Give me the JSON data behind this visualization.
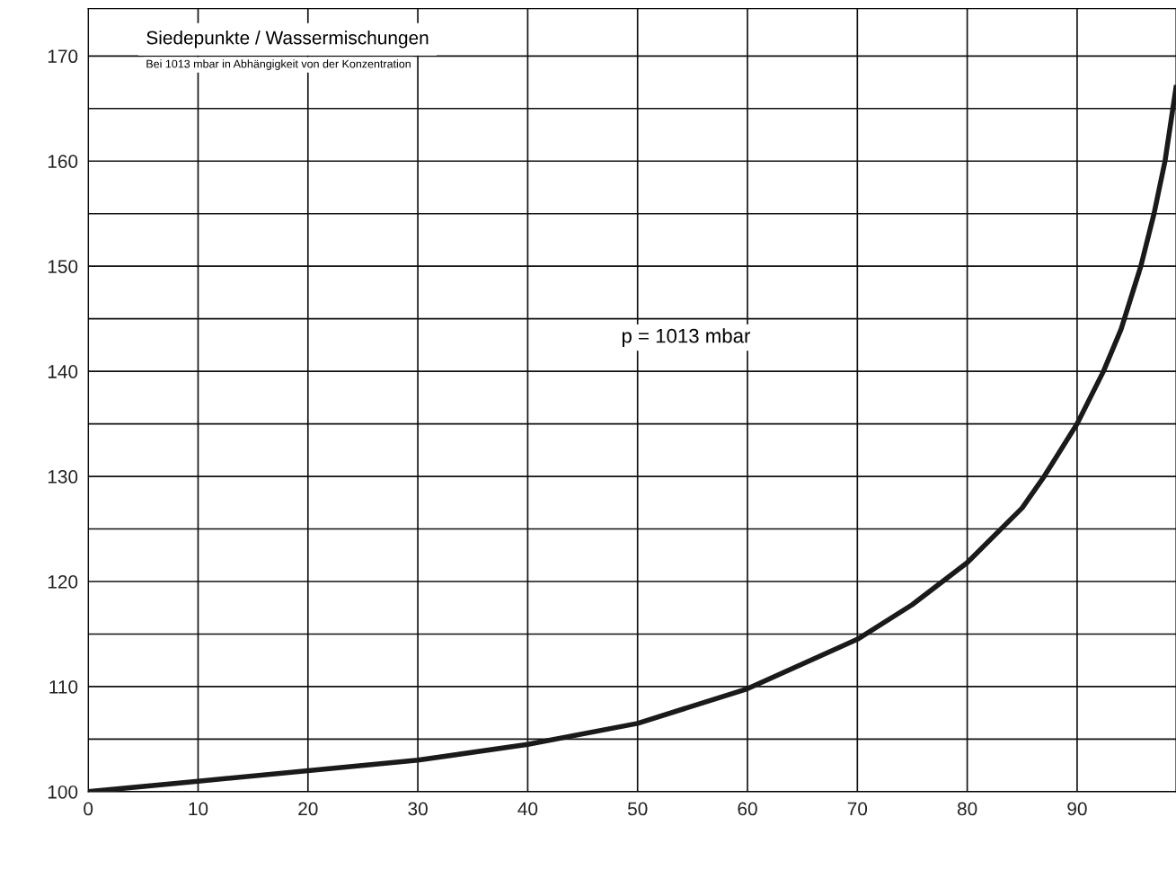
{
  "chart_data": {
    "type": "line",
    "title": "Siedepunkte / Wassermischungen",
    "subtitle": "Bei 1013 mbar in Abhängigkeit von der Konzentration",
    "annotations": [
      "p = 1013 mbar"
    ],
    "x": [
      0,
      10,
      20,
      30,
      40,
      50,
      60,
      70,
      75,
      80,
      85,
      87,
      90,
      92.4,
      94,
      95.8,
      97,
      98,
      99
    ],
    "series": [
      {
        "color": "#1a1a1a",
        "values": [
          100,
          101,
          102,
          103,
          104.5,
          106.5,
          109.8,
          114.5,
          117.8,
          121.8,
          127,
          130,
          135,
          140,
          144,
          150,
          155,
          160,
          167
        ]
      }
    ],
    "xlim": [
      0,
      99
    ],
    "ylim": [
      100,
      174.5
    ],
    "xticks": [
      0,
      10,
      20,
      30,
      40,
      50,
      60,
      70,
      80,
      90
    ],
    "yticks": [
      100,
      {
        "value": 105,
        "label": null
      },
      110,
      {
        "value": 115,
        "label": null
      },
      120,
      {
        "value": 125,
        "label": null
      },
      130,
      {
        "value": 135,
        "label": null
      },
      140,
      {
        "value": 145,
        "label": null
      },
      150,
      {
        "value": 155,
        "label": null
      },
      160,
      {
        "value": 165,
        "label": null
      },
      170
    ],
    "grid": true,
    "legend": false,
    "marker": "none",
    "line_style": "solid"
  }
}
